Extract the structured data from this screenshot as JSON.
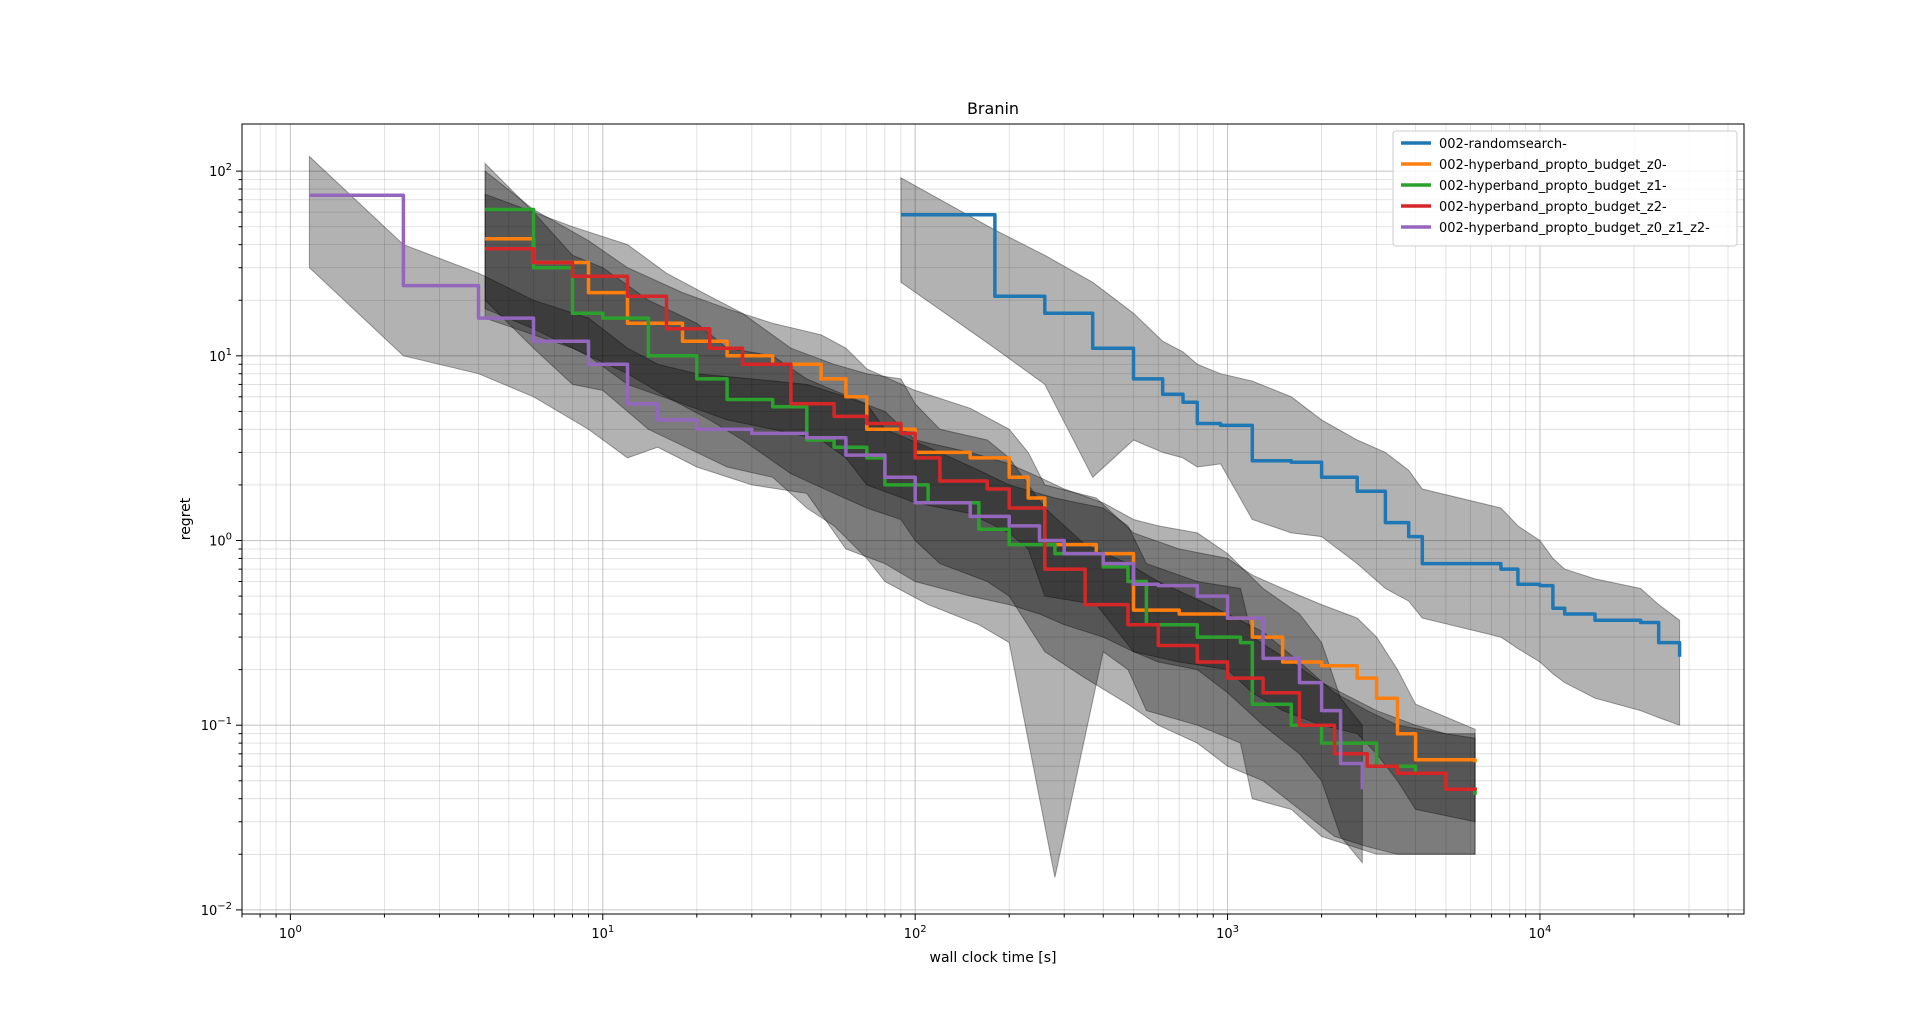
{
  "chart_data": {
    "type": "line",
    "title": "Branin",
    "xlabel": "wall clock time [s]",
    "ylabel": "regret",
    "xscale": "log",
    "yscale": "log",
    "xlim": [
      0.7,
      45000
    ],
    "ylim": [
      0.0095,
      180
    ],
    "x_ticks": [
      {
        "value": 1,
        "base": "10",
        "exp": "0"
      },
      {
        "value": 10,
        "base": "10",
        "exp": "1"
      },
      {
        "value": 100,
        "base": "10",
        "exp": "2"
      },
      {
        "value": 1000,
        "base": "10",
        "exp": "3"
      },
      {
        "value": 10000,
        "base": "10",
        "exp": "4"
      }
    ],
    "y_ticks": [
      {
        "value": 0.01,
        "base": "10",
        "exp": "−2"
      },
      {
        "value": 0.1,
        "base": "10",
        "exp": "−1"
      },
      {
        "value": 1,
        "base": "10",
        "exp": "0"
      },
      {
        "value": 10,
        "base": "10",
        "exp": "1"
      },
      {
        "value": 100,
        "base": "10",
        "exp": "2"
      }
    ],
    "grid": true,
    "legend_position": "top-right",
    "band_color": "#000000",
    "band_opacity": 0.3,
    "series": [
      {
        "name": "002-randomsearch-",
        "color": "#1f77b4",
        "x": [
          90,
          180,
          260,
          370,
          500,
          620,
          720,
          800,
          950,
          1200,
          1600,
          2000,
          2600,
          3200,
          3800,
          4200,
          7500,
          8500,
          10000,
          11000,
          12000,
          15000,
          21000,
          24000,
          28000
        ],
        "y": [
          58,
          21,
          17,
          11,
          7.5,
          6.2,
          5.6,
          4.3,
          4.2,
          2.7,
          2.65,
          2.2,
          1.85,
          1.25,
          1.05,
          0.75,
          0.7,
          0.58,
          0.57,
          0.43,
          0.4,
          0.37,
          0.36,
          0.28,
          0.235
        ],
        "upper": [
          92,
          48,
          35,
          25,
          17,
          12,
          10.5,
          9,
          8,
          7.3,
          6,
          4.5,
          3.5,
          3,
          2.4,
          1.9,
          1.5,
          1.2,
          1.0,
          0.8,
          0.7,
          0.62,
          0.55,
          0.45,
          0.37
        ],
        "lower": [
          25,
          11,
          7,
          2.2,
          3.5,
          3,
          2.8,
          2.5,
          2.6,
          1.3,
          1.1,
          1.05,
          0.75,
          0.55,
          0.47,
          0.38,
          0.3,
          0.26,
          0.22,
          0.19,
          0.17,
          0.14,
          0.12,
          0.11,
          0.1
        ]
      },
      {
        "name": "002-hyperband_propto_budget_z0-",
        "color": "#ff7f0e",
        "x": [
          4.2,
          6,
          9,
          12,
          18,
          25,
          35,
          50,
          60,
          70,
          100,
          150,
          200,
          230,
          260,
          380,
          500,
          700,
          1000,
          1200,
          1500,
          2000,
          2600,
          3000,
          3500,
          4000,
          6200
        ],
        "y": [
          43,
          32,
          22,
          15,
          12,
          10,
          9,
          7.5,
          6,
          4,
          3,
          2.8,
          2.2,
          1.7,
          0.95,
          0.85,
          0.42,
          0.4,
          0.38,
          0.3,
          0.22,
          0.21,
          0.18,
          0.14,
          0.09,
          0.065,
          0.063
        ],
        "upper": [
          100,
          62,
          42,
          30,
          22,
          18,
          15,
          13,
          11,
          8.5,
          6.5,
          5.2,
          4,
          3,
          2,
          1.7,
          1.1,
          0.9,
          0.8,
          0.65,
          0.55,
          0.45,
          0.38,
          0.3,
          0.2,
          0.13,
          0.095
        ],
        "lower": [
          18,
          14,
          10,
          7,
          5.5,
          4.5,
          4,
          3.5,
          2.8,
          2,
          1.6,
          1.4,
          1.1,
          0.9,
          0.5,
          0.45,
          0.25,
          0.22,
          0.2,
          0.15,
          0.12,
          0.1,
          0.09,
          0.07,
          0.05,
          0.035,
          0.03
        ]
      },
      {
        "name": "002-hyperband_propto_budget_z1-",
        "color": "#2ca02c",
        "x": [
          4.2,
          6,
          8,
          10,
          14,
          20,
          25,
          35,
          45,
          55,
          70,
          80,
          110,
          160,
          200,
          280,
          400,
          480,
          550,
          800,
          1100,
          1200,
          1600,
          2000,
          3000,
          4000,
          5000,
          6200
        ],
        "y": [
          62,
          30,
          17,
          16,
          10,
          7.5,
          5.8,
          5.3,
          3.5,
          3.2,
          2.8,
          2.0,
          1.6,
          1.15,
          0.95,
          0.85,
          0.72,
          0.6,
          0.35,
          0.3,
          0.28,
          0.13,
          0.1,
          0.08,
          0.06,
          0.055,
          0.045,
          0.042
        ],
        "upper": [
          110,
          60,
          35,
          30,
          20,
          15,
          11,
          10,
          7.5,
          6.5,
          5.5,
          4,
          3.2,
          2.4,
          2,
          1.7,
          1.5,
          1.2,
          0.75,
          0.6,
          0.55,
          0.3,
          0.22,
          0.17,
          0.12,
          0.1,
          0.09,
          0.085
        ],
        "lower": [
          20,
          11,
          7,
          6.5,
          4,
          3,
          2.5,
          2.2,
          1.5,
          1.2,
          0.8,
          0.6,
          0.45,
          0.35,
          0.28,
          0.015,
          0.25,
          0.2,
          0.12,
          0.1,
          0.08,
          0.04,
          0.035,
          0.025,
          0.02,
          0.02,
          0.02,
          0.02
        ]
      },
      {
        "name": "002-hyperband_propto_budget_z2-",
        "color": "#d62728",
        "x": [
          4.2,
          6,
          8,
          12,
          16,
          22,
          28,
          40,
          55,
          70,
          90,
          100,
          120,
          170,
          200,
          260,
          350,
          480,
          600,
          800,
          1000,
          1300,
          1700,
          2200,
          2800,
          3500,
          5000,
          6200
        ],
        "y": [
          38,
          32,
          27,
          21,
          14,
          11,
          9,
          5.5,
          4.7,
          4.3,
          3.8,
          2.8,
          2.1,
          1.9,
          1.5,
          0.7,
          0.45,
          0.35,
          0.27,
          0.22,
          0.18,
          0.15,
          0.1,
          0.07,
          0.06,
          0.055,
          0.045,
          0.046
        ],
        "upper": [
          75,
          60,
          50,
          40,
          28,
          21,
          17,
          11,
          9,
          8,
          7.5,
          5.5,
          4,
          3.5,
          2.8,
          1.5,
          0.95,
          0.75,
          0.6,
          0.48,
          0.4,
          0.32,
          0.22,
          0.15,
          0.12,
          0.1,
          0.09,
          0.09
        ],
        "lower": [
          16,
          13,
          11,
          8,
          6,
          4.5,
          3.5,
          2.3,
          1.8,
          1.5,
          1.3,
          1.0,
          0.75,
          0.6,
          0.5,
          0.25,
          0.18,
          0.13,
          0.1,
          0.08,
          0.06,
          0.05,
          0.035,
          0.025,
          0.022,
          0.02,
          0.02,
          0.02
        ]
      },
      {
        "name": "002-hyperband_propto_budget_z0_z1_z2-",
        "color": "#9467bd",
        "x": [
          1.15,
          2.3,
          4,
          6,
          9,
          12,
          15,
          20,
          30,
          45,
          60,
          80,
          100,
          150,
          200,
          250,
          300,
          400,
          500,
          600,
          800,
          1000,
          1300,
          1700,
          2000,
          2300,
          2700
        ],
        "y": [
          74,
          24,
          16,
          12,
          9,
          5.5,
          4.5,
          4,
          3.8,
          3.6,
          2.9,
          2.2,
          1.6,
          1.35,
          1.2,
          1.0,
          0.85,
          0.75,
          0.58,
          0.57,
          0.5,
          0.38,
          0.23,
          0.17,
          0.12,
          0.062,
          0.045
        ],
        "upper": [
          120,
          40,
          28,
          20,
          16,
          11,
          9,
          8,
          7.5,
          7,
          6,
          5,
          3.5,
          3,
          2.6,
          2.2,
          1.9,
          1.6,
          1.3,
          1.2,
          1.1,
          0.85,
          0.55,
          0.4,
          0.28,
          0.14,
          0.1
        ],
        "lower": [
          30,
          10,
          8,
          6,
          4,
          2.8,
          3.2,
          2.5,
          2,
          1.8,
          0.9,
          0.75,
          0.6,
          0.5,
          0.45,
          0.4,
          0.35,
          0.3,
          0.25,
          0.22,
          0.2,
          0.15,
          0.1,
          0.07,
          0.05,
          0.025,
          0.018
        ]
      }
    ]
  }
}
